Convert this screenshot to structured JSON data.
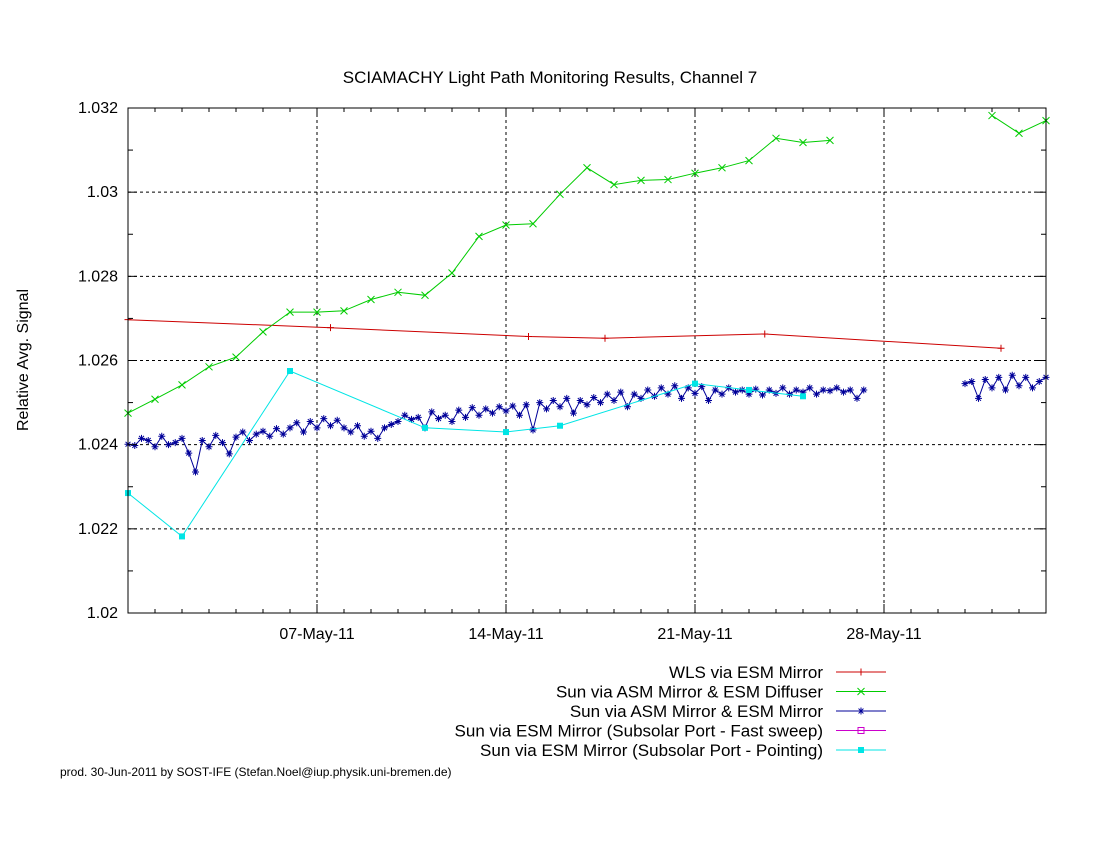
{
  "chart_data": {
    "type": "line",
    "title": "SCIAMACHY Light Path Monitoring Results, Channel 7",
    "ylabel": "Relative Avg. Signal",
    "xlabel": "",
    "xlim": [
      "2011-04-30",
      "2011-06-03"
    ],
    "ylim": [
      1.02,
      1.032
    ],
    "yticks": [
      "1.02",
      "1.022",
      "1.024",
      "1.026",
      "1.028",
      "1.03",
      "1.032"
    ],
    "xticks": [
      {
        "date": "2011-05-07",
        "label": "07-May-11"
      },
      {
        "date": "2011-05-14",
        "label": "14-May-11"
      },
      {
        "date": "2011-05-21",
        "label": "21-May-11"
      },
      {
        "date": "2011-05-28",
        "label": "28-May-11"
      }
    ],
    "grid": true,
    "legend_position": "bottom-right",
    "series": [
      {
        "name": "WLS via ESM Mirror",
        "color": "#cc0000",
        "marker": "plus",
        "points": [
          [
            "2011-04-30 00:00",
            1.02697
          ],
          [
            "2011-05-07 12:00",
            1.02678
          ],
          [
            "2011-05-14 20:00",
            1.02657
          ],
          [
            "2011-05-17 16:00",
            1.02653
          ],
          [
            "2011-05-23 14:00",
            1.02663
          ],
          [
            "2011-06-01 08:00",
            1.02629
          ]
        ]
      },
      {
        "name": "Sun via ASM Mirror & ESM Diffuser",
        "color": "#00cc00",
        "marker": "cross",
        "points": [
          [
            "2011-04-30 00:00",
            1.02475
          ],
          [
            "2011-05-01 00:00",
            1.02508
          ],
          [
            "2011-05-02 00:00",
            1.02542
          ],
          [
            "2011-05-03 00:00",
            1.02585
          ],
          [
            "2011-05-04 00:00",
            1.02608
          ],
          [
            "2011-05-05 00:00",
            1.02668
          ],
          [
            "2011-05-06 00:00",
            1.02715
          ],
          [
            "2011-05-07 00:00",
            1.02715
          ],
          [
            "2011-05-08 00:00",
            1.02718
          ],
          [
            "2011-05-09 00:00",
            1.02745
          ],
          [
            "2011-05-10 00:00",
            1.02762
          ],
          [
            "2011-05-11 00:00",
            1.02755
          ],
          [
            "2011-05-12 00:00",
            1.02808
          ],
          [
            "2011-05-13 00:00",
            1.02895
          ],
          [
            "2011-05-14 00:00",
            1.02922
          ],
          [
            "2011-05-15 00:00",
            1.02925
          ],
          [
            "2011-05-16 00:00",
            1.02995
          ],
          [
            "2011-05-17 00:00",
            1.03058
          ],
          [
            "2011-05-18 00:00",
            1.03018
          ],
          [
            "2011-05-19 00:00",
            1.03028
          ],
          [
            "2011-05-20 00:00",
            1.0303
          ],
          [
            "2011-05-21 00:00",
            1.03045
          ],
          [
            "2011-05-22 00:00",
            1.03058
          ],
          [
            "2011-05-23 00:00",
            1.03075
          ],
          [
            "2011-05-24 00:00",
            1.03128
          ],
          [
            "2011-05-25 00:00",
            1.03118
          ],
          [
            "2011-05-26 00:00",
            1.03123
          ],
          null,
          [
            "2011-06-01 00:00",
            1.03182
          ],
          [
            "2011-06-02 00:00",
            1.0314
          ],
          [
            "2011-06-03 00:00",
            1.0317
          ]
        ]
      },
      {
        "name": "Sun via ASM Mirror & ESM Mirror",
        "color": "#000099",
        "marker": "star",
        "dense": true,
        "points": [
          [
            "2011-04-30 00:00",
            1.02401
          ],
          [
            "2011-04-30 06:00",
            1.02398
          ],
          [
            "2011-04-30 12:00",
            1.02415
          ],
          [
            "2011-04-30 18:00",
            1.0241
          ],
          [
            "2011-05-01 00:00",
            1.02395
          ],
          [
            "2011-05-01 06:00",
            1.0242
          ],
          [
            "2011-05-01 12:00",
            1.024
          ],
          [
            "2011-05-01 18:00",
            1.02405
          ],
          [
            "2011-05-02 00:00",
            1.02415
          ],
          [
            "2011-05-02 06:00",
            1.0238
          ],
          [
            "2011-05-02 12:00",
            1.02335
          ],
          [
            "2011-05-02 18:00",
            1.0241
          ],
          [
            "2011-05-03 00:00",
            1.02395
          ],
          [
            "2011-05-03 06:00",
            1.02422
          ],
          [
            "2011-05-03 12:00",
            1.02405
          ],
          [
            "2011-05-03 18:00",
            1.02378
          ],
          [
            "2011-05-04 00:00",
            1.02418
          ],
          [
            "2011-05-04 06:00",
            1.0243
          ],
          [
            "2011-05-04 12:00",
            1.0241
          ],
          [
            "2011-05-04 18:00",
            1.02425
          ],
          [
            "2011-05-05 00:00",
            1.02432
          ],
          [
            "2011-05-05 06:00",
            1.0242
          ],
          [
            "2011-05-05 12:00",
            1.02438
          ],
          [
            "2011-05-05 18:00",
            1.02425
          ],
          [
            "2011-05-06 00:00",
            1.0244
          ],
          [
            "2011-05-06 06:00",
            1.02452
          ],
          [
            "2011-05-06 12:00",
            1.0243
          ],
          [
            "2011-05-06 18:00",
            1.02455
          ],
          [
            "2011-05-07 00:00",
            1.0244
          ],
          [
            "2011-05-07 06:00",
            1.02462
          ],
          [
            "2011-05-07 12:00",
            1.02445
          ],
          [
            "2011-05-07 18:00",
            1.02458
          ],
          [
            "2011-05-08 00:00",
            1.0244
          ],
          [
            "2011-05-08 06:00",
            1.0243
          ],
          [
            "2011-05-08 12:00",
            1.02445
          ],
          [
            "2011-05-08 18:00",
            1.0242
          ],
          [
            "2011-05-09 00:00",
            1.02432
          ],
          [
            "2011-05-09 06:00",
            1.02415
          ],
          [
            "2011-05-09 12:00",
            1.0244
          ],
          [
            "2011-05-09 18:00",
            1.02448
          ],
          [
            "2011-05-10 00:00",
            1.02455
          ],
          [
            "2011-05-10 06:00",
            1.0247
          ],
          [
            "2011-05-10 12:00",
            1.0246
          ],
          [
            "2011-05-10 18:00",
            1.02465
          ],
          [
            "2011-05-11 00:00",
            1.0244
          ],
          [
            "2011-05-11 06:00",
            1.02478
          ],
          [
            "2011-05-11 12:00",
            1.02462
          ],
          [
            "2011-05-11 18:00",
            1.0247
          ],
          [
            "2011-05-12 00:00",
            1.02455
          ],
          [
            "2011-05-12 06:00",
            1.02482
          ],
          [
            "2011-05-12 12:00",
            1.02465
          ],
          [
            "2011-05-12 18:00",
            1.02488
          ],
          [
            "2011-05-13 00:00",
            1.0247
          ],
          [
            "2011-05-13 06:00",
            1.02485
          ],
          [
            "2011-05-13 12:00",
            1.02475
          ],
          [
            "2011-05-13 18:00",
            1.0249
          ],
          [
            "2011-05-14 00:00",
            1.0248
          ],
          [
            "2011-05-14 06:00",
            1.02492
          ],
          [
            "2011-05-14 12:00",
            1.0247
          ],
          [
            "2011-05-14 18:00",
            1.02495
          ],
          [
            "2011-05-15 00:00",
            1.02435
          ],
          [
            "2011-05-15 06:00",
            1.025
          ],
          [
            "2011-05-15 12:00",
            1.02485
          ],
          [
            "2011-05-15 18:00",
            1.02505
          ],
          [
            "2011-05-16 00:00",
            1.0249
          ],
          [
            "2011-05-16 06:00",
            1.0251
          ],
          [
            "2011-05-16 12:00",
            1.02475
          ],
          [
            "2011-05-16 18:00",
            1.02505
          ],
          [
            "2011-05-17 00:00",
            1.02495
          ],
          [
            "2011-05-17 06:00",
            1.02512
          ],
          [
            "2011-05-17 12:00",
            1.025
          ],
          [
            "2011-05-17 18:00",
            1.0252
          ],
          [
            "2011-05-18 00:00",
            1.02505
          ],
          [
            "2011-05-18 06:00",
            1.02525
          ],
          [
            "2011-05-18 12:00",
            1.0249
          ],
          [
            "2011-05-18 18:00",
            1.0252
          ],
          [
            "2011-05-19 00:00",
            1.0251
          ],
          [
            "2011-05-19 06:00",
            1.0253
          ],
          [
            "2011-05-19 12:00",
            1.02515
          ],
          [
            "2011-05-19 18:00",
            1.02535
          ],
          [
            "2011-05-20 00:00",
            1.0252
          ],
          [
            "2011-05-20 06:00",
            1.0254
          ],
          [
            "2011-05-20 12:00",
            1.0251
          ],
          [
            "2011-05-20 18:00",
            1.02535
          ],
          [
            "2011-05-21 00:00",
            1.02522
          ],
          [
            "2011-05-21 06:00",
            1.02538
          ],
          [
            "2011-05-21 12:00",
            1.02505
          ],
          [
            "2011-05-21 18:00",
            1.0253
          ],
          [
            "2011-05-22 00:00",
            1.0252
          ],
          [
            "2011-05-22 06:00",
            1.02535
          ],
          [
            "2011-05-22 12:00",
            1.02525
          ],
          [
            "2011-05-22 18:00",
            1.0253
          ],
          [
            "2011-05-23 00:00",
            1.0252
          ],
          [
            "2011-05-23 06:00",
            1.02532
          ],
          [
            "2011-05-23 12:00",
            1.02518
          ],
          [
            "2011-05-23 18:00",
            1.0253
          ],
          [
            "2011-05-24 00:00",
            1.02522
          ],
          [
            "2011-05-24 06:00",
            1.02535
          ],
          [
            "2011-05-24 12:00",
            1.0252
          ],
          [
            "2011-05-24 18:00",
            1.0253
          ],
          [
            "2011-05-25 00:00",
            1.02525
          ],
          [
            "2011-05-25 06:00",
            1.02535
          ],
          [
            "2011-05-25 12:00",
            1.0252
          ],
          [
            "2011-05-25 18:00",
            1.0253
          ],
          [
            "2011-05-26 00:00",
            1.02528
          ],
          [
            "2011-05-26 06:00",
            1.02535
          ],
          [
            "2011-05-26 12:00",
            1.02525
          ],
          [
            "2011-05-26 18:00",
            1.0253
          ],
          [
            "2011-05-27 00:00",
            1.0251
          ],
          [
            "2011-05-27 06:00",
            1.0253
          ],
          null,
          [
            "2011-05-31 00:00",
            1.02545
          ],
          [
            "2011-05-31 06:00",
            1.0255
          ],
          [
            "2011-05-31 12:00",
            1.0251
          ],
          [
            "2011-05-31 18:00",
            1.02555
          ],
          [
            "2011-06-01 00:00",
            1.02535
          ],
          [
            "2011-06-01 06:00",
            1.0256
          ],
          [
            "2011-06-01 12:00",
            1.0253
          ],
          [
            "2011-06-01 18:00",
            1.02565
          ],
          [
            "2011-06-02 00:00",
            1.0254
          ],
          [
            "2011-06-02 06:00",
            1.0256
          ],
          [
            "2011-06-02 12:00",
            1.02535
          ],
          [
            "2011-06-02 18:00",
            1.0255
          ],
          [
            "2011-06-03 00:00",
            1.0256
          ]
        ]
      },
      {
        "name": "Sun via ESM Mirror (Subsolar Port - Fast sweep)",
        "color": "#cc00cc",
        "marker": "square-open",
        "points": []
      },
      {
        "name": "Sun via ESM Mirror (Subsolar Port - Pointing)",
        "color": "#00e5e5",
        "marker": "square-filled",
        "points": [
          [
            "2011-04-30 00:00",
            1.02285
          ],
          [
            "2011-05-02 00:00",
            1.02182
          ],
          [
            "2011-05-06 00:00",
            1.02575
          ],
          [
            "2011-05-11 00:00",
            1.0244
          ],
          [
            "2011-05-14 00:00",
            1.0243
          ],
          [
            "2011-05-16 00:00",
            1.02445
          ],
          [
            "2011-05-21 00:00",
            1.02545
          ],
          [
            "2011-05-23 00:00",
            1.0253
          ],
          [
            "2011-05-25 00:00",
            1.02515
          ]
        ]
      }
    ]
  },
  "footer": {
    "credit": "prod. 30-Jun-2011 by SOST-IFE (Stefan.Noel@iup.physik.uni-bremen.de)"
  }
}
